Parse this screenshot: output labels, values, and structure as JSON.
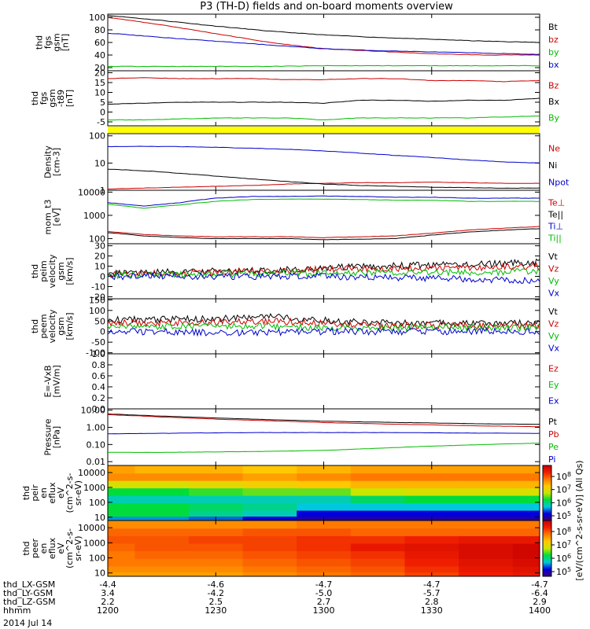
{
  "title": "P3 (TH-D) fields and on-board moments overview",
  "date_label": "2014 Jul 14",
  "time_axis": {
    "row_labels": [
      "thd_LX-GSM",
      "thd_LY-GSM",
      "thd_LZ-GSM",
      "hhmm"
    ],
    "columns": [
      [
        "-4.4",
        "3.4",
        "2.2",
        "1200"
      ],
      [
        "-4.6",
        "-4.2",
        "2.5",
        "1230"
      ],
      [
        "-4.7",
        "-5.0",
        "2.7",
        "1300"
      ],
      [
        "-4.7",
        "-5.7",
        "2.8",
        "1330"
      ],
      [
        "-4.7",
        "-6.4",
        "2.9",
        "1400"
      ]
    ]
  },
  "colorbar": {
    "label": "[eV/(cm^2-s-sr-eV)] (All Qs)",
    "ticks_top": [
      "10^8",
      "10^7",
      "10^6",
      "10^5"
    ],
    "ticks_bottom": [
      "10^8",
      "10^7",
      "10^6",
      "10^5"
    ]
  },
  "status_bar_color": "#ffff00",
  "chart_data": [
    {
      "type": "line",
      "ylabel": [
        "thd",
        "fgs",
        "gsm",
        "[nT]"
      ],
      "ylim": [
        15,
        105
      ],
      "yticks": [
        "100",
        "80",
        "60",
        "40",
        "20"
      ],
      "ytick_values": [
        100,
        80,
        60,
        40,
        20
      ],
      "x": [
        1200,
        1215,
        1230,
        1245,
        1300,
        1315,
        1330,
        1345,
        1400
      ],
      "series": [
        {
          "name": "Bt",
          "color": "#000000",
          "values": [
            103,
            95,
            86,
            78,
            72,
            68,
            65,
            62,
            60
          ]
        },
        {
          "name": "bz",
          "color": "#cc0000",
          "values": [
            100,
            88,
            74,
            60,
            50,
            46,
            42,
            40,
            40
          ]
        },
        {
          "name": "by",
          "color": "#00bb00",
          "values": [
            22,
            22,
            22,
            22,
            23,
            23,
            23,
            23,
            23
          ]
        },
        {
          "name": "bx",
          "color": "#0000cc",
          "values": [
            75,
            68,
            62,
            56,
            50,
            47,
            45,
            43,
            41
          ]
        }
      ]
    },
    {
      "type": "line",
      "ylabel": [
        "thd",
        "fgs",
        "gsm",
        "-t89",
        "[nT]"
      ],
      "ylim": [
        -7,
        21
      ],
      "yticks": [
        "20",
        "15",
        "10",
        "5",
        "0",
        "-5"
      ],
      "ytick_values": [
        20,
        15,
        10,
        5,
        0,
        -5
      ],
      "x": [
        1200,
        1210,
        1220,
        1230,
        1240,
        1250,
        1300,
        1310,
        1320,
        1330,
        1340,
        1350,
        1400
      ],
      "series": [
        {
          "name": "Bz",
          "color": "#cc0000",
          "values": [
            17,
            17.5,
            17,
            17,
            17,
            16.5,
            16.5,
            17,
            17,
            16,
            16,
            15.5,
            16
          ]
        },
        {
          "name": "Bx",
          "color": "#000000",
          "values": [
            4,
            4.5,
            5,
            5,
            5,
            5,
            4.5,
            6,
            6,
            5.5,
            6,
            6,
            7
          ]
        },
        {
          "name": "By",
          "color": "#00bb00",
          "values": [
            -4,
            -4,
            -3.5,
            -3,
            -3,
            -3,
            -4,
            -3,
            -3,
            -3,
            -3,
            -2.5,
            -2
          ]
        }
      ]
    },
    {
      "type": "line",
      "ylabel": [
        "Density",
        "[cm-3]"
      ],
      "log": true,
      "ylim": [
        1,
        120
      ],
      "yticks": [
        "100",
        "10",
        "1"
      ],
      "ytick_values": [
        100,
        10,
        1
      ],
      "x": [
        1200,
        1210,
        1220,
        1230,
        1240,
        1250,
        1300,
        1310,
        1320,
        1330,
        1340,
        1350,
        1400
      ],
      "series": [
        {
          "name": "Ne",
          "color": "#cc0000",
          "values": [
            1.1,
            1.2,
            1.3,
            1.4,
            1.5,
            1.7,
            1.8,
            1.9,
            1.9,
            2.0,
            1.9,
            1.8,
            1.8
          ]
        },
        {
          "name": "Ni",
          "color": "#000000",
          "values": [
            6,
            5.2,
            4.2,
            3.3,
            2.6,
            2.1,
            1.7,
            1.5,
            1.4,
            1.3,
            1.25,
            1.2,
            1.2
          ]
        },
        {
          "name": "Npot",
          "color": "#0000cc",
          "values": [
            40,
            41,
            40,
            38,
            35,
            32,
            28,
            23,
            19,
            16,
            13,
            11,
            10
          ]
        }
      ]
    },
    {
      "type": "line",
      "ylabel": [
        "mom_t3",
        "[eV]"
      ],
      "log": true,
      "ylim": [
        60,
        12000
      ],
      "yticks": [
        "10000",
        "1000",
        "100"
      ],
      "ytick_values": [
        10000,
        1000,
        100
      ],
      "x": [
        1200,
        1210,
        1220,
        1230,
        1240,
        1250,
        1300,
        1310,
        1320,
        1330,
        1340,
        1350,
        1400
      ],
      "series": [
        {
          "name": "Te⊥",
          "color": "#cc0000",
          "values": [
            200,
            150,
            130,
            120,
            120,
            120,
            110,
            120,
            130,
            170,
            230,
            280,
            330
          ]
        },
        {
          "name": "Te||",
          "color": "#000000",
          "values": [
            180,
            130,
            110,
            100,
            100,
            100,
            90,
            95,
            100,
            140,
            190,
            230,
            270
          ]
        },
        {
          "name": "Ti⊥",
          "color": "#0000cc",
          "values": [
            3500,
            2500,
            3500,
            5500,
            6500,
            6500,
            6800,
            6500,
            6000,
            6000,
            5500,
            5500,
            5500
          ]
        },
        {
          "name": "Ti||",
          "color": "#00bb00",
          "values": [
            3000,
            2000,
            2800,
            4000,
            4800,
            5000,
            5000,
            4800,
            4500,
            4500,
            4000,
            4000,
            4000
          ]
        }
      ]
    },
    {
      "type": "line",
      "ylabel": [
        "thd",
        "peim",
        "velocity",
        "gsm",
        "[km/s]"
      ],
      "ylim": [
        -22,
        32
      ],
      "yticks": [
        "30",
        "20",
        "10",
        "0",
        "-10",
        "-20"
      ],
      "ytick_values": [
        30,
        20,
        10,
        0,
        -10,
        -20
      ],
      "x": [
        1200,
        1215,
        1230,
        1245,
        1300,
        1315,
        1330,
        1345,
        1400
      ],
      "series": [
        {
          "name": "Vt",
          "color": "#000000",
          "values": [
            3,
            4,
            5,
            6,
            8,
            10,
            11,
            12,
            14
          ]
        },
        {
          "name": "Vz",
          "color": "#cc0000",
          "values": [
            2,
            3,
            4,
            5,
            7,
            8,
            8,
            9,
            10
          ]
        },
        {
          "name": "Vy",
          "color": "#00bb00",
          "values": [
            1,
            2,
            2,
            3,
            3,
            4,
            4,
            4,
            5
          ]
        },
        {
          "name": "Vx",
          "color": "#0000cc",
          "values": [
            0,
            0,
            0,
            0,
            0,
            -1,
            -2,
            -3,
            -4
          ]
        }
      ]
    },
    {
      "type": "line",
      "ylabel": [
        "thd",
        "peem",
        "velocity",
        "gsm",
        "[km/s]"
      ],
      "ylim": [
        -105,
        155
      ],
      "yticks": [
        "150",
        "100",
        "50",
        "0",
        "-50",
        "-100"
      ],
      "ytick_values": [
        150,
        100,
        50,
        0,
        -50,
        -100
      ],
      "x": [
        1200,
        1215,
        1230,
        1245,
        1300,
        1315,
        1330,
        1345,
        1400
      ],
      "series": [
        {
          "name": "Vt",
          "color": "#000000",
          "values": [
            55,
            58,
            60,
            70,
            55,
            40,
            40,
            40,
            40
          ]
        },
        {
          "name": "Vz",
          "color": "#cc0000",
          "values": [
            40,
            42,
            45,
            50,
            40,
            28,
            28,
            28,
            28
          ]
        },
        {
          "name": "Vy",
          "color": "#00bb00",
          "values": [
            25,
            25,
            25,
            25,
            20,
            18,
            18,
            18,
            18
          ]
        },
        {
          "name": "Vx",
          "color": "#0000cc",
          "values": [
            0,
            0,
            -5,
            -5,
            0,
            0,
            0,
            0,
            0
          ]
        }
      ]
    },
    {
      "type": "line",
      "ylabel": [
        "E=-VxB",
        "[mV/m]"
      ],
      "ylim": [
        0,
        1
      ],
      "yticks": [
        "1.0",
        "0.8",
        "0.6",
        "0.4",
        "0.2",
        "0.0"
      ],
      "ytick_values": [
        1.0,
        0.8,
        0.6,
        0.4,
        0.2,
        0.0
      ],
      "x": [],
      "series": [
        {
          "name": "Ez",
          "color": "#cc0000",
          "values": []
        },
        {
          "name": "Ey",
          "color": "#00bb00",
          "values": []
        },
        {
          "name": "Ex",
          "color": "#0000cc",
          "values": []
        }
      ]
    },
    {
      "type": "line",
      "ylabel": [
        "Pressure",
        "[nPa]"
      ],
      "log": true,
      "ylim": [
        0.006,
        12
      ],
      "yticks": [
        "10.00",
        "1.00",
        "0.10",
        "0.01"
      ],
      "ytick_values": [
        10,
        1,
        0.1,
        0.01
      ],
      "x": [
        1200,
        1215,
        1230,
        1245,
        1300,
        1315,
        1330,
        1345,
        1400
      ],
      "series": [
        {
          "name": "Pt",
          "color": "#000000",
          "values": [
            6.0,
            4.5,
            3.5,
            2.8,
            2.3,
            2.0,
            1.8,
            1.6,
            1.5
          ]
        },
        {
          "name": "Pb",
          "color": "#cc0000",
          "values": [
            5.5,
            4.0,
            3.0,
            2.4,
            1.9,
            1.6,
            1.4,
            1.2,
            1.1
          ]
        },
        {
          "name": "Pe",
          "color": "#00bb00",
          "values": [
            0.035,
            0.035,
            0.037,
            0.04,
            0.045,
            0.06,
            0.08,
            0.1,
            0.12
          ]
        },
        {
          "name": "Pi",
          "color": "#0000cc",
          "values": [
            0.42,
            0.45,
            0.48,
            0.5,
            0.5,
            0.5,
            0.48,
            0.46,
            0.45
          ]
        }
      ]
    },
    {
      "type": "heatmap",
      "ylabel": [
        "thd",
        "peir",
        "en",
        "eflux",
        "eV",
        "(cm^2-s-",
        "sr-eV)"
      ],
      "log": true,
      "ylim": [
        6,
        30000
      ],
      "yticks": [
        "10000",
        "1000",
        "100",
        "10"
      ],
      "ytick_values": [
        10000,
        1000,
        100,
        10
      ],
      "x": [
        1200,
        1215,
        1230,
        1245,
        1300,
        1315,
        1330,
        1345,
        1400
      ],
      "energy_bands_eV": [
        15000,
        5000,
        1500,
        500,
        150,
        50,
        15,
        8
      ],
      "log_eflux": [
        [
          6.8,
          6.7,
          6.7,
          6.6,
          6.7,
          6.8,
          6.8,
          6.8,
          6.8
        ],
        [
          6.9,
          6.9,
          6.9,
          6.8,
          6.9,
          7.0,
          7.0,
          7.0,
          7.0
        ],
        [
          6.3,
          6.3,
          6.4,
          6.5,
          6.6,
          6.7,
          6.7,
          6.7,
          6.7
        ],
        [
          5.8,
          5.8,
          5.9,
          6.0,
          6.0,
          6.2,
          6.3,
          6.3,
          6.3
        ],
        [
          5.5,
          5.5,
          5.5,
          5.5,
          5.5,
          5.7,
          5.8,
          5.8,
          5.8
        ],
        [
          5.8,
          5.8,
          5.7,
          5.6,
          5.4,
          5.4,
          5.4,
          5.4,
          5.4
        ],
        [
          5.8,
          5.8,
          5.6,
          5.5,
          5.0,
          5.0,
          5.0,
          5.0,
          5.0
        ],
        [
          5.3,
          5.3,
          5.2,
          5.0,
          4.8,
          4.8,
          4.8,
          4.8,
          4.8
        ]
      ]
    },
    {
      "type": "heatmap",
      "ylabel": [
        "thd",
        "peer",
        "en",
        "eflux",
        "eV",
        "(cm^2-s-",
        "sr-eV)"
      ],
      "log": true,
      "ylim": [
        6,
        30000
      ],
      "yticks": [
        "10000",
        "1000",
        "100",
        "10"
      ],
      "ytick_values": [
        10000,
        1000,
        100,
        10
      ],
      "x": [
        1200,
        1215,
        1230,
        1245,
        1300,
        1315,
        1330,
        1345,
        1400
      ],
      "energy_bands_eV": [
        15000,
        5000,
        1500,
        500,
        150,
        50,
        15,
        8
      ],
      "log_eflux": [
        [
          6.9,
          6.9,
          6.9,
          6.9,
          7.0,
          7.0,
          7.0,
          7.0,
          7.0
        ],
        [
          7.1,
          7.1,
          7.1,
          7.2,
          7.2,
          7.1,
          7.1,
          7.1,
          7.1
        ],
        [
          7.2,
          7.2,
          7.3,
          7.3,
          7.4,
          7.4,
          7.5,
          7.6,
          7.6
        ],
        [
          7.1,
          7.2,
          7.2,
          7.3,
          7.4,
          7.6,
          7.7,
          7.8,
          7.9
        ],
        [
          7.0,
          7.1,
          7.1,
          7.2,
          7.3,
          7.4,
          7.6,
          7.8,
          7.9
        ],
        [
          7.0,
          7.0,
          7.0,
          7.1,
          7.2,
          7.3,
          7.5,
          7.7,
          7.8
        ],
        [
          6.9,
          6.9,
          6.9,
          7.0,
          7.1,
          7.2,
          7.4,
          7.6,
          7.7
        ],
        [
          6.8,
          6.8,
          6.8,
          6.9,
          7.0,
          7.1,
          7.3,
          7.5,
          7.6
        ]
      ]
    }
  ]
}
